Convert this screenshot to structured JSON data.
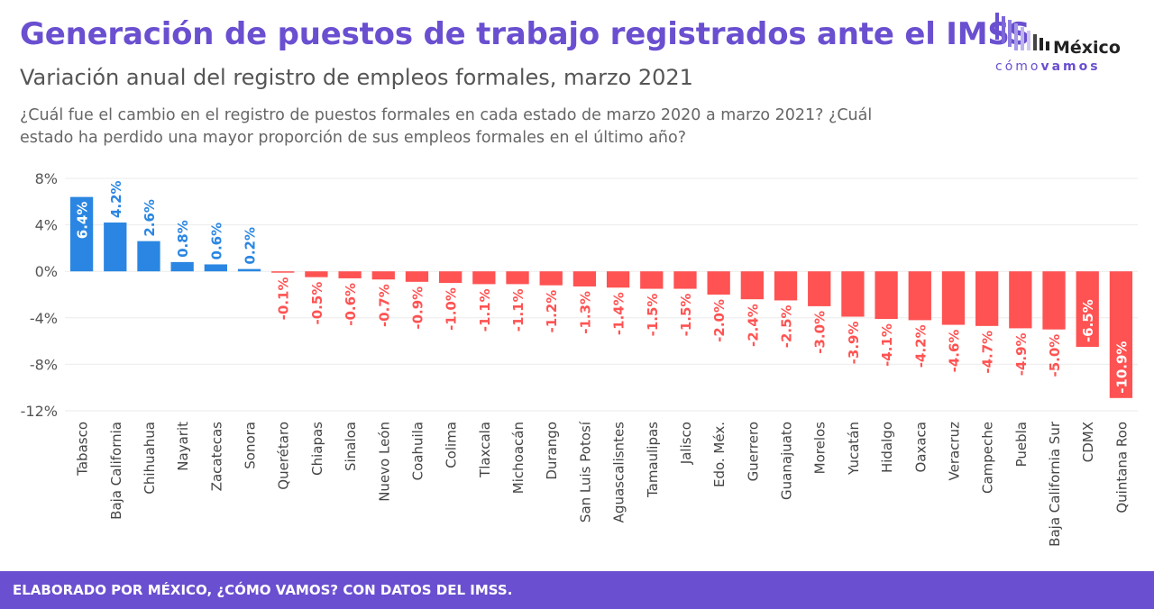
{
  "header": {
    "title": "Generación de puestos de trabajo registrados ante el IMSS",
    "subtitle": "Variación anual del registro de empleos formales, marzo 2021",
    "question": "¿Cuál fue el cambio en el registro de puestos formales en cada estado de marzo 2020 a marzo 2021? ¿Cuál estado ha perdido una mayor proporción de sus empleos formales en el último año?"
  },
  "logo": {
    "name_top": "México",
    "name_bottom_light": "cómo",
    "name_bottom_bold": "vamos",
    "color": "#6a4fd0"
  },
  "footer": {
    "text": "ELABORADO POR MÉXICO, ¿CÓMO VAMOS? CON DATOS DEL IMSS.",
    "background": "#6a4fd0"
  },
  "chart_data": {
    "type": "bar",
    "title": "",
    "xlabel": "",
    "ylabel": "",
    "ylim": [
      -12,
      8
    ],
    "yticks": [
      8,
      4,
      0,
      -4,
      -8,
      -12
    ],
    "ytick_labels": [
      "8%",
      "4%",
      "0%",
      "-4%",
      "-8%",
      "-12%"
    ],
    "grid": true,
    "positive_color": "#2a86e2",
    "negative_color": "#ff5252",
    "categories": [
      "Tabasco",
      "Baja California",
      "Chihuahua",
      "Nayarit",
      "Zacatecas",
      "Sonora",
      "Querétaro",
      "Chiapas",
      "Sinaloa",
      "Nuevo León",
      "Coahuila",
      "Colima",
      "Tlaxcala",
      "Michoacán",
      "Durango",
      "San Luis Potosí",
      "Aguascalisntes",
      "Tamaulipas",
      "Jalisco",
      "Edo. Méx.",
      "Guerrero",
      "Guanajuato",
      "Morelos",
      "Yucatán",
      "Hidalgo",
      "Oaxaca",
      "Veracruz",
      "Campeche",
      "Puebla",
      "Baja California Sur",
      "CDMX",
      "Quintana Roo"
    ],
    "values": [
      6.4,
      4.2,
      2.6,
      0.8,
      0.6,
      0.2,
      -0.1,
      -0.5,
      -0.6,
      -0.7,
      -0.9,
      -1.0,
      -1.1,
      -1.1,
      -1.2,
      -1.3,
      -1.4,
      -1.5,
      -1.5,
      -2.0,
      -2.4,
      -2.5,
      -3.0,
      -3.9,
      -4.1,
      -4.2,
      -4.6,
      -4.7,
      -4.9,
      -5.0,
      -6.5,
      -10.9
    ],
    "data_labels": [
      "6.4%",
      "4.2%",
      "2.6%",
      "0.8%",
      "0.6%",
      "0.2%",
      "-0.1%",
      "-0.5%",
      "-0.6%",
      "-0.7%",
      "-0.9%",
      "-1.0%",
      "-1.1%",
      "-1.1%",
      "-1.2%",
      "-1.3%",
      "-1.4%",
      "-1.5%",
      "-1.5%",
      "-2.0%",
      "-2.4%",
      "-2.5%",
      "-3.0%",
      "-3.9%",
      "-4.1%",
      "-4.2%",
      "-4.6%",
      "-4.7%",
      "-4.9%",
      "-5.0%",
      "-6.5%",
      "-10.9%"
    ]
  }
}
